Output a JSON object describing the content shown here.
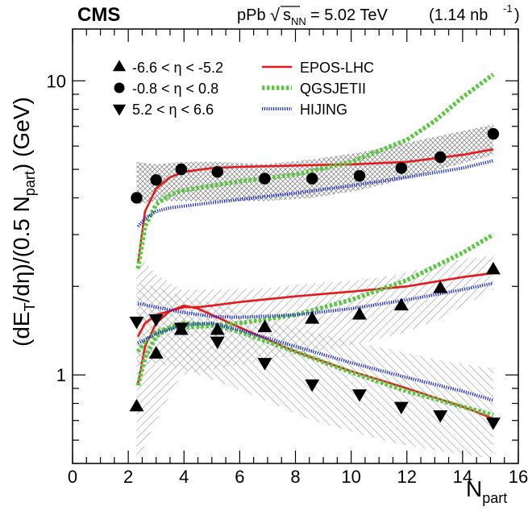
{
  "chart_data": {
    "type": "scatter",
    "experiment": "CMS",
    "header": {
      "system": "pPb",
      "sqrt": "s",
      "subscript": "NN",
      "energy": "= 5.02 TeV",
      "lumi_pre": "(1.14 nb",
      "lumi_exp": "-1",
      "lumi_post": ")"
    },
    "xlabel": {
      "main": "N",
      "sub": "part"
    },
    "ylabel": {
      "p1": "(dE",
      "s1": "T",
      "p2": "/dη)/(0.5 N",
      "s2": "part",
      "p3": ") (GeV)"
    },
    "x_scale": "linear",
    "y_scale": "log",
    "xlim": [
      0,
      16
    ],
    "ylim": [
      0.5,
      15
    ],
    "x_ticks": [
      "0",
      "2",
      "4",
      "6",
      "8",
      "10",
      "12",
      "14",
      "16"
    ],
    "y_ticks": [
      "1",
      "10"
    ],
    "legend": {
      "position": "top-left"
    },
    "series": [
      {
        "name": "-6.6 < η < -5.2",
        "marker": "triangle-up",
        "x": [
          2.3,
          3.0,
          3.9,
          5.2,
          6.9,
          8.6,
          10.3,
          11.8,
          13.2,
          15.1
        ],
        "y": [
          0.78,
          1.18,
          1.42,
          1.42,
          1.45,
          1.55,
          1.6,
          1.72,
          1.97,
          2.28
        ],
        "band": {
          "upper": [
            2.6,
            2.2,
            1.95,
            1.95,
            1.97,
            2.05,
            2.1,
            2.2,
            2.4,
            2.55
          ],
          "lower": [
            0.5,
            0.7,
            1.0,
            1.05,
            1.12,
            1.2,
            1.28,
            1.38,
            1.55,
            1.95
          ]
        }
      },
      {
        "name": "-0.8 < η <  0.8",
        "marker": "circle",
        "x": [
          2.3,
          3.0,
          3.9,
          5.2,
          6.9,
          8.6,
          10.3,
          11.8,
          13.2,
          15.1
        ],
        "y": [
          4.0,
          4.6,
          5.0,
          4.9,
          4.65,
          4.65,
          4.75,
          5.05,
          5.5,
          6.6
        ],
        "band": {
          "upper": [
            5.3,
            5.2,
            5.3,
            5.3,
            5.2,
            5.4,
            5.7,
            6.1,
            6.5,
            7.1
          ],
          "lower": [
            3.8,
            3.9,
            3.9,
            3.9,
            3.9,
            4.0,
            4.25,
            4.6,
            5.0,
            5.6
          ]
        }
      },
      {
        "name": "5.2 < η <  6.6",
        "marker": "triangle-down",
        "x": [
          2.3,
          3.0,
          3.9,
          5.2,
          6.9,
          8.6,
          10.3,
          11.8,
          13.2,
          15.1
        ],
        "y": [
          1.52,
          1.55,
          1.45,
          1.3,
          1.1,
          0.93,
          0.86,
          0.78,
          0.73,
          0.69
        ],
        "band": {
          "upper": [
            2.05,
            2.0,
            1.85,
            1.75,
            1.55,
            1.4,
            1.28,
            1.2,
            1.12,
            1.05
          ],
          "lower": [
            1.08,
            1.1,
            1.05,
            0.95,
            0.82,
            0.7,
            0.63,
            0.58,
            0.55,
            0.52
          ]
        }
      }
    ],
    "models": [
      {
        "name": "EPOS-LHC",
        "color": "#e8191c",
        "style": "solid",
        "curves": [
          {
            "x": [
              2.35,
              2.6,
              3.0,
              3.5,
              4.0,
              5.0,
              6.0,
              8.0,
              10.0,
              12.0,
              14.0,
              15.1
            ],
            "y": [
              2.4,
              3.6,
              4.3,
              4.7,
              4.9,
              5.05,
              5.1,
              5.15,
              5.2,
              5.3,
              5.6,
              5.85
            ]
          },
          {
            "x": [
              2.35,
              2.6,
              3.0,
              3.5,
              4.0,
              4.5,
              5.0,
              6.0,
              8.0,
              10.0,
              12.0,
              14.0,
              15.1
            ],
            "y": [
              1.35,
              1.5,
              1.6,
              1.65,
              1.7,
              1.7,
              1.72,
              1.77,
              1.85,
              1.92,
              2.0,
              2.15,
              2.22
            ]
          },
          {
            "x": [
              2.35,
              2.6,
              3.0,
              3.5,
              4.0,
              4.5,
              5.0,
              6.0,
              8.0,
              10.0,
              12.0,
              14.0,
              15.1
            ],
            "y": [
              0.93,
              1.25,
              1.5,
              1.65,
              1.72,
              1.68,
              1.6,
              1.45,
              1.2,
              1.03,
              0.9,
              0.78,
              0.71
            ]
          }
        ]
      },
      {
        "name": "QGSJETII",
        "color": "#5bc642",
        "style": "dotted",
        "curves": [
          {
            "x": [
              2.35,
              2.6,
              3.0,
              3.5,
              4.0,
              5.0,
              6.0,
              8.0,
              10.0,
              12.0,
              13.0,
              14.0,
              15.1
            ],
            "y": [
              2.3,
              3.2,
              3.8,
              4.1,
              4.25,
              4.4,
              4.55,
              4.8,
              5.3,
              6.3,
              7.3,
              8.8,
              10.5
            ]
          },
          {
            "x": [
              2.35,
              2.6,
              3.0,
              3.5,
              4.0,
              5.0,
              6.0,
              8.0,
              10.0,
              12.0,
              14.0,
              15.1
            ],
            "y": [
              1.2,
              1.3,
              1.4,
              1.45,
              1.45,
              1.47,
              1.5,
              1.6,
              1.8,
              2.1,
              2.6,
              3.0
            ]
          },
          {
            "x": [
              2.35,
              2.6,
              3.0,
              3.5,
              4.0,
              5.0,
              6.0,
              8.0,
              10.0,
              12.0,
              14.0,
              15.1
            ],
            "y": [
              0.92,
              1.15,
              1.35,
              1.45,
              1.5,
              1.48,
              1.4,
              1.2,
              1.02,
              0.88,
              0.78,
              0.73
            ]
          }
        ]
      },
      {
        "name": "HIJING",
        "color": "#1c2bd1",
        "style": "dashed",
        "curves": [
          {
            "x": [
              2.35,
              2.6,
              3.0,
              3.5,
              4.0,
              5.0,
              6.0,
              8.0,
              10.0,
              12.0,
              14.0,
              15.1
            ],
            "y": [
              3.2,
              3.4,
              3.6,
              3.7,
              3.75,
              3.85,
              3.95,
              4.15,
              4.4,
              4.7,
              5.05,
              5.35
            ]
          },
          {
            "x": [
              2.35,
              3.0,
              4.0,
              5.0,
              6.0,
              8.0,
              10.0,
              12.0,
              14.0,
              15.1
            ],
            "y": [
              1.75,
              1.7,
              1.63,
              1.58,
              1.57,
              1.6,
              1.68,
              1.8,
              1.95,
              2.05
            ]
          },
          {
            "x": [
              2.35,
              3.0,
              4.0,
              5.0,
              6.0,
              8.0,
              10.0,
              12.0,
              14.0,
              15.1
            ],
            "y": [
              1.28,
              1.38,
              1.48,
              1.5,
              1.42,
              1.25,
              1.1,
              0.98,
              0.88,
              0.82
            ]
          }
        ]
      }
    ],
    "colors": {
      "marker": "#000000",
      "band": "#9a9a9a"
    }
  }
}
